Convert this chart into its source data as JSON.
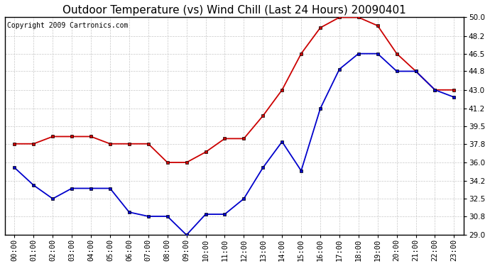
{
  "title": "Outdoor Temperature (vs) Wind Chill (Last 24 Hours) 20090401",
  "copyright": "Copyright 2009 Cartronics.com",
  "hours": [
    "00:00",
    "01:00",
    "02:00",
    "03:00",
    "04:00",
    "05:00",
    "06:00",
    "07:00",
    "08:00",
    "09:00",
    "10:00",
    "11:00",
    "12:00",
    "13:00",
    "14:00",
    "15:00",
    "16:00",
    "17:00",
    "18:00",
    "19:00",
    "20:00",
    "21:00",
    "22:00",
    "23:00"
  ],
  "temp": [
    37.8,
    37.8,
    38.5,
    38.5,
    38.5,
    37.8,
    37.8,
    37.8,
    36.0,
    36.0,
    37.0,
    38.3,
    38.3,
    40.5,
    43.0,
    46.5,
    49.0,
    50.0,
    50.0,
    49.2,
    46.5,
    44.8,
    43.0,
    43.0
  ],
  "wind_chill": [
    35.5,
    33.8,
    32.5,
    33.5,
    33.5,
    33.5,
    31.2,
    30.8,
    30.8,
    29.0,
    31.0,
    31.0,
    32.5,
    35.5,
    38.0,
    35.2,
    41.2,
    45.0,
    46.5,
    46.5,
    44.8,
    44.8,
    43.0,
    42.3
  ],
  "ylim": [
    29.0,
    50.0
  ],
  "yticks": [
    29.0,
    30.8,
    32.5,
    34.2,
    36.0,
    37.8,
    39.5,
    41.2,
    43.0,
    44.8,
    46.5,
    48.2,
    50.0
  ],
  "temp_color": "#cc0000",
  "wind_chill_color": "#0000cc",
  "bg_color": "#ffffff",
  "plot_bg_color": "#ffffff",
  "grid_color": "#c8c8c8",
  "title_fontsize": 11,
  "copyright_fontsize": 7,
  "tick_fontsize": 7.5
}
